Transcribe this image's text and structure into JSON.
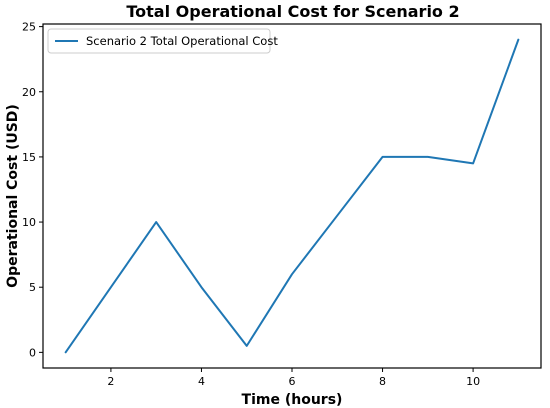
{
  "chart_data": {
    "type": "line",
    "title": "Total Operational Cost for Scenario 2",
    "xlabel": "Time (hours)",
    "ylabel": "Operational Cost (USD)",
    "xlim": [
      0.5,
      11.5
    ],
    "ylim": [
      -1.2,
      25.2
    ],
    "xticks": [
      2,
      4,
      6,
      8,
      10
    ],
    "yticks": [
      0,
      5,
      10,
      15,
      20,
      25
    ],
    "legend_position": "top-left",
    "grid": false,
    "series": [
      {
        "name": "Scenario 2 Total Operational Cost",
        "color": "#1f77b4",
        "x": [
          1,
          2,
          3,
          4,
          5,
          6,
          7,
          8,
          9,
          10,
          11
        ],
        "y": [
          0,
          5,
          10,
          5,
          0.5,
          6,
          10.5,
          15,
          15,
          14.5,
          24
        ]
      }
    ]
  }
}
